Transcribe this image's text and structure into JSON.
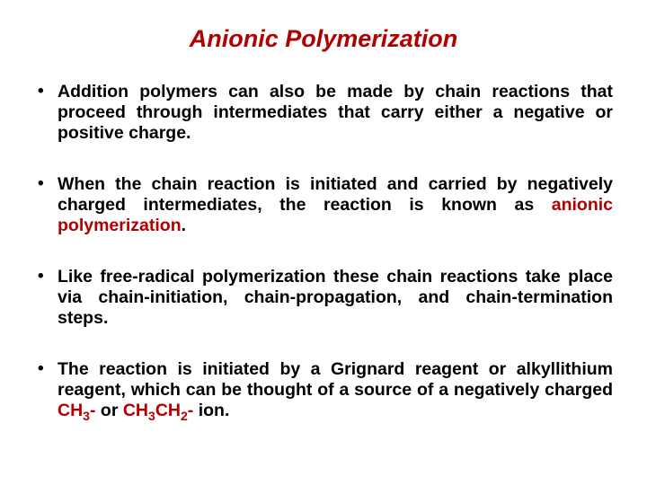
{
  "title_color": "#b00000",
  "highlight_color": "#b00000",
  "text_color": "#000000",
  "title": "Anionic Polymerization",
  "bullets": [
    {
      "pre": "Addition polymers can also be made by chain reactions that proceed through intermediates that carry either a negative or positive charge.",
      "hl": "",
      "post": ""
    },
    {
      "pre": "When the chain reaction is initiated and carried by negatively charged intermediates, the reaction is known as ",
      "hl": "anionic polymerization",
      "post": "."
    },
    {
      "pre": "Like free-radical polymerization these chain reactions take place via chain-initiation, chain-propagation, and chain-termination steps.",
      "hl": "",
      "post": ""
    },
    {
      "pre": "The reaction is initiated by a Grignard reagent or alkyllithium reagent, which can be thought of a source of a negatively charged ",
      "hl": "",
      "post": "",
      "ion1_a": "CH",
      "ion1_b": "3",
      "ion1_c": "-",
      "mid": " or ",
      "ion2_a": "CH",
      "ion2_b": "3",
      "ion2_c": "CH",
      "ion2_d": "2",
      "ion2_e": "-",
      "tail": " ion."
    }
  ]
}
